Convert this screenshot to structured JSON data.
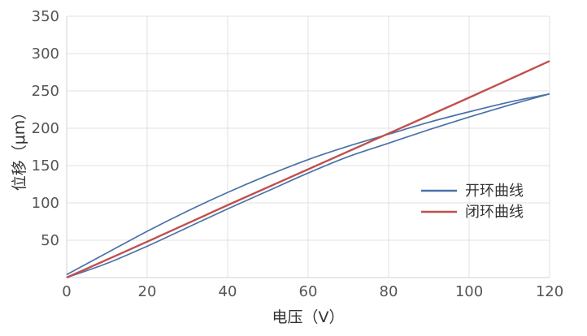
{
  "chart_data": {
    "type": "line",
    "xlabel": "电压（V）",
    "ylabel": "位移（μm）",
    "xlim": [
      0,
      120
    ],
    "ylim": [
      0,
      350
    ],
    "xticks": [
      0,
      20,
      40,
      60,
      80,
      100,
      120
    ],
    "yticks": [
      50,
      100,
      150,
      200,
      250,
      300,
      350
    ],
    "grid": true,
    "legend_position": "right",
    "series": [
      {
        "name": "开环曲线",
        "color": "#4a72a8",
        "branch": "upper",
        "x": [
          0,
          10,
          20,
          30,
          40,
          50,
          60,
          70,
          80,
          90,
          100,
          110,
          120
        ],
        "y": [
          4,
          33,
          62,
          89,
          114,
          137,
          158,
          176,
          192,
          208,
          222,
          235,
          246
        ]
      },
      {
        "name": "开环曲线",
        "color": "#4a72a8",
        "branch": "lower",
        "x": [
          0,
          10,
          20,
          30,
          40,
          50,
          60,
          70,
          80,
          90,
          100,
          110,
          120
        ],
        "y": [
          0,
          19,
          42,
          67,
          92,
          116,
          140,
          162,
          180,
          198,
          215,
          231,
          246
        ]
      },
      {
        "name": "闭环曲线",
        "color": "#c0504d",
        "x": [
          0,
          20,
          40,
          60,
          80,
          100,
          120
        ],
        "y": [
          0,
          48,
          97,
          145,
          193,
          241,
          290
        ]
      }
    ],
    "legend": [
      {
        "label": "开环曲线",
        "color": "#4a72a8"
      },
      {
        "label": "闭环曲线",
        "color": "#c0504d"
      }
    ]
  }
}
